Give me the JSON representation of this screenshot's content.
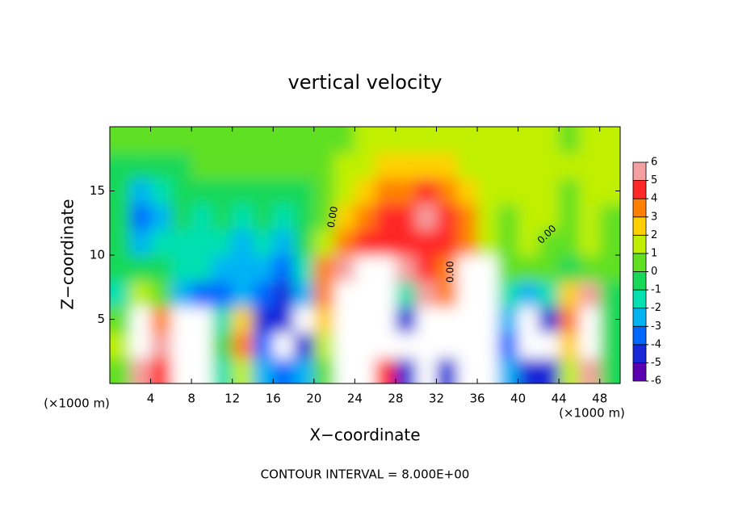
{
  "chart_data": {
    "type": "contour",
    "title": "vertical velocity",
    "xlabel": "X−coordinate",
    "ylabel": "Z−coordinate",
    "x_unit_left": "(×1000 m)",
    "x_unit_right": "(×1000 m)",
    "footer": "CONTOUR INTERVAL = 8.000E+00",
    "contour_labels": [
      "0.00",
      "0.00",
      "0.00"
    ],
    "xlim": [
      0,
      50
    ],
    "ylim": [
      0,
      20
    ],
    "xticks": [
      4,
      8,
      12,
      16,
      20,
      24,
      28,
      32,
      36,
      40,
      44,
      48
    ],
    "yticks": [
      5,
      10,
      15
    ],
    "clim": [
      -6,
      6
    ],
    "cticks": [
      -6,
      -5,
      -4,
      -3,
      -2,
      -1,
      0,
      1,
      2,
      3,
      4,
      5,
      6
    ],
    "colors": [
      "#5a00b0",
      "#1828d8",
      "#0068ff",
      "#00b4f4",
      "#00e0b0",
      "#18d858",
      "#60e020",
      "#c0f000",
      "#ffd000",
      "#ff8000",
      "#ff2828",
      "#f4a0a0"
    ],
    "x": [
      1,
      3,
      5,
      7,
      9,
      11,
      13,
      15,
      17,
      19,
      21,
      23,
      25,
      27,
      29,
      31,
      33,
      35,
      37,
      39,
      41,
      43,
      45,
      47,
      49
    ],
    "z": [
      1,
      3,
      5,
      7,
      9,
      11,
      13,
      15,
      17,
      19
    ],
    "values": [
      [
        0,
        5,
        4,
        -6,
        -8,
        -2,
        1,
        -3,
        -4,
        -3,
        0,
        6,
        7,
        4,
        -5,
        -8,
        -5,
        6,
        6,
        -3,
        -5,
        -5,
        1,
        5,
        -1
      ],
      [
        1,
        9,
        5,
        -8,
        -9,
        -1,
        3,
        -4,
        -6,
        -5,
        1,
        10,
        12,
        8,
        -6,
        -12,
        -9,
        10,
        11,
        -4,
        -7,
        -6,
        2,
        9,
        -1
      ],
      [
        0,
        6,
        3,
        -7,
        -8,
        -2,
        2,
        -5,
        -5,
        -7,
        2,
        12,
        13,
        9,
        -5,
        -11,
        -8,
        11,
        12,
        -3,
        -7,
        -5,
        3,
        10,
        -1
      ],
      [
        -2,
        1,
        0,
        -3,
        -4,
        -4,
        -3,
        -4,
        -5,
        -3,
        3,
        7,
        8,
        7,
        -2,
        5,
        3,
        10,
        9,
        -2,
        -3,
        -2,
        2,
        5,
        -1
      ],
      [
        -1,
        -1,
        -1,
        -2,
        -2,
        -3,
        -3,
        -3,
        -4,
        -2,
        3,
        5,
        6,
        6,
        5,
        4,
        3,
        7,
        6,
        0,
        0,
        0,
        -1,
        0,
        0
      ],
      [
        -1,
        -3,
        -2,
        -2,
        -2,
        -2,
        -3,
        -2,
        -3,
        -1,
        1,
        3,
        4,
        4,
        4,
        4,
        4,
        3,
        1,
        0,
        1,
        0,
        0,
        1,
        0
      ],
      [
        -1,
        -4,
        -3,
        -1,
        -2,
        -1,
        -2,
        -1,
        -2,
        -1,
        0,
        2,
        3,
        4,
        4,
        5,
        4,
        3,
        1,
        0,
        1,
        1,
        0,
        1,
        0
      ],
      [
        -1,
        -3,
        -2,
        -1,
        -1,
        -1,
        -1,
        -1,
        -1,
        -1,
        0,
        1,
        2,
        3,
        3,
        4,
        3,
        2,
        1,
        1,
        1,
        1,
        0,
        1,
        1
      ],
      [
        -1,
        -1,
        -1,
        -1,
        0,
        0,
        0,
        0,
        0,
        0,
        0,
        1,
        1,
        2,
        2,
        2,
        2,
        1,
        1,
        1,
        1,
        1,
        1,
        1,
        1
      ],
      [
        0,
        0,
        0,
        0,
        0,
        0,
        0,
        0,
        0,
        0,
        0,
        0,
        1,
        1,
        1,
        1,
        1,
        1,
        1,
        1,
        1,
        1,
        0,
        1,
        1
      ]
    ]
  }
}
